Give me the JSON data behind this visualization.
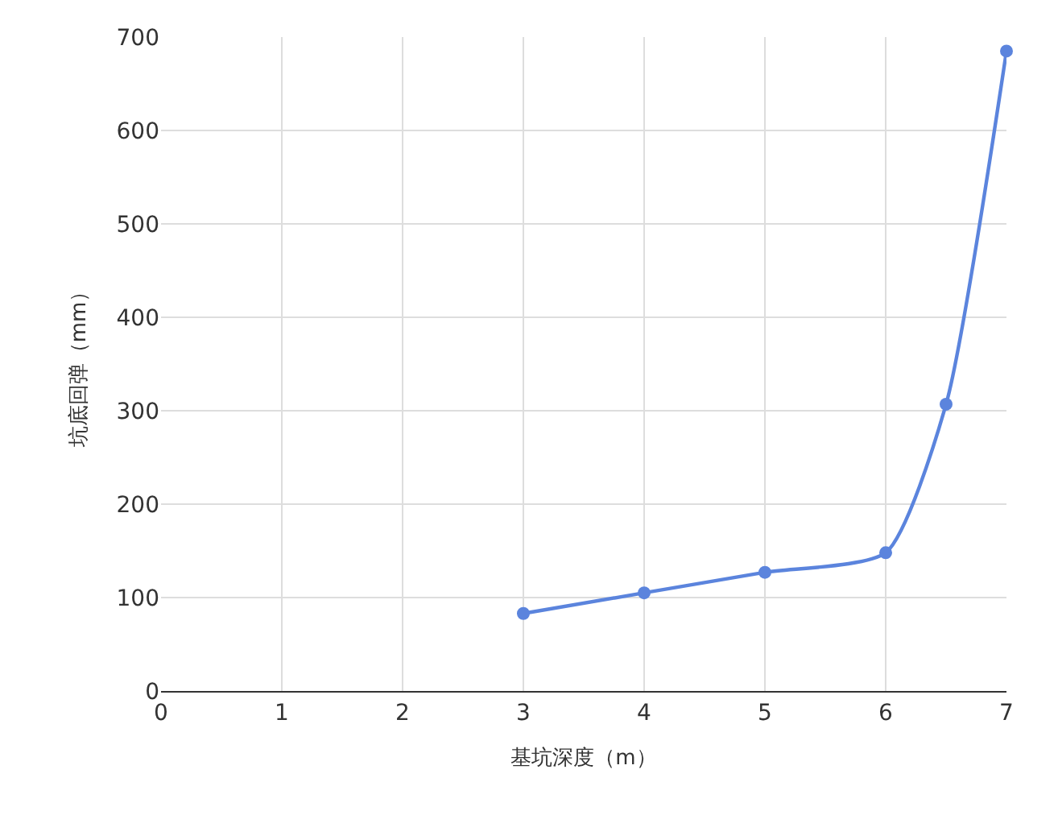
{
  "chart_data": {
    "type": "line",
    "xlabel": "基坑深度（m）",
    "ylabel": "坑底回弹（mm）",
    "x": [
      3,
      4,
      5,
      6,
      6.5,
      7
    ],
    "series": [
      {
        "color": "#5b84dd",
        "values": [
          83,
          105,
          127,
          148,
          307,
          685
        ]
      }
    ],
    "xlim": [
      0,
      7
    ],
    "xticks": [
      0,
      1,
      2,
      3,
      4,
      5,
      6,
      7
    ],
    "ylim": [
      0,
      700
    ],
    "yticks": [
      0,
      100,
      200,
      300,
      400,
      500,
      600,
      700
    ],
    "grid": true,
    "marker": "circle",
    "line_style": "solid"
  }
}
